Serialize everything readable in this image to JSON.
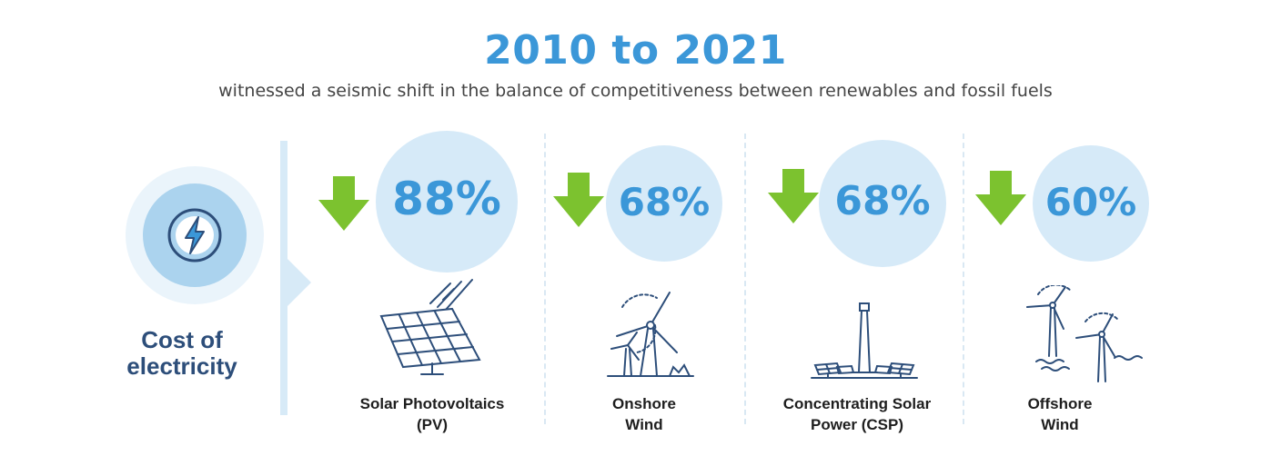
{
  "header": {
    "title": "2010 to 2021",
    "subtitle": "witnessed a seismic shift in the balance of competitiveness between renewables and fossil fuels"
  },
  "left_panel": {
    "icon": "lightning-bolt-icon",
    "label_line1": "Cost of",
    "label_line2": "electricity"
  },
  "colors": {
    "accent_blue": "#3b97d8",
    "circle_light": "#d6eaf8",
    "arrow_green": "#7cc22f",
    "label_navy": "#2d4e7a"
  },
  "technologies": [
    {
      "label_line1": "Solar Photovoltaics",
      "label_line2": "(PV)",
      "decline": "88%",
      "icon": "solar-panel-icon"
    },
    {
      "label_line1": "Onshore",
      "label_line2": "Wind",
      "decline": "68%",
      "icon": "onshore-wind-turbine-icon"
    },
    {
      "label_line1": "Concentrating Solar",
      "label_line2": "Power (CSP)",
      "decline": "68%",
      "icon": "solar-tower-icon"
    },
    {
      "label_line1": "Offshore",
      "label_line2": "Wind",
      "decline": "60%",
      "icon": "offshore-wind-turbine-icon"
    }
  ]
}
